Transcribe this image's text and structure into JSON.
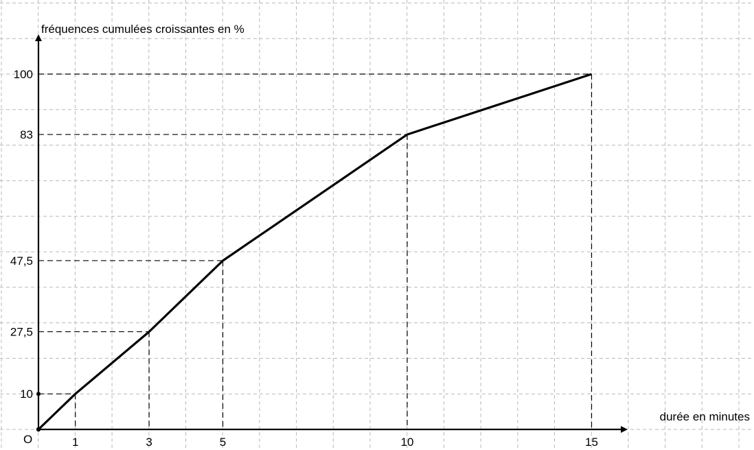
{
  "chart_data": {
    "type": "line",
    "ylabel": "fréquences cumulées croissantes en %",
    "xlabel": "durée en minutes",
    "origin_label": "O",
    "x_ticks": [
      "1",
      "3",
      "5",
      "10",
      "15"
    ],
    "y_ticks": [
      "10",
      "27,5",
      "47,5",
      "83",
      "100"
    ],
    "series": [
      {
        "x": [
          0,
          1,
          3,
          5,
          10,
          15
        ],
        "y": [
          0,
          10,
          27.5,
          47.5,
          83,
          100
        ]
      }
    ],
    "xlim": [
      0,
      16
    ],
    "ylim": [
      0,
      100
    ],
    "grid": true,
    "dashed_guides": true,
    "color": "#000000"
  }
}
